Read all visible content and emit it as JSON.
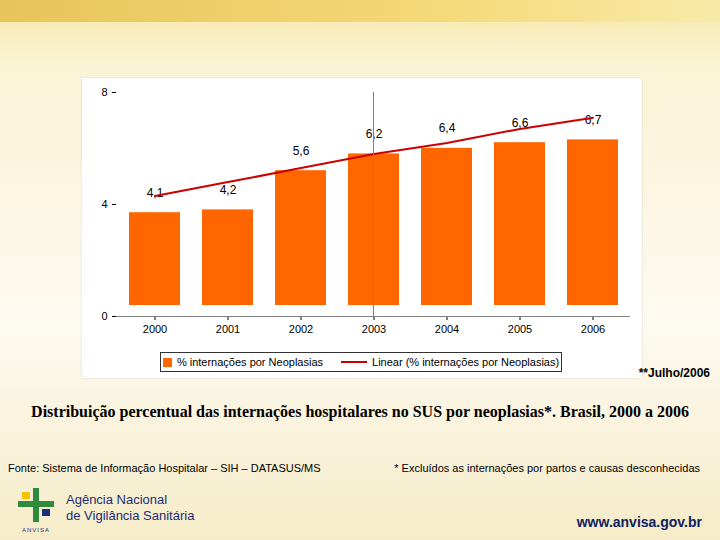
{
  "chart_data": {
    "type": "bar",
    "title": "Distribuição percentual das internações hospitalares no SUS por neoplasias*. Brasil, 2000 a 2006",
    "categories": [
      "2000",
      "2001",
      "2002",
      "2003",
      "2004",
      "2005",
      "2006"
    ],
    "series": [
      {
        "name": "% internações por Neoplasias",
        "type": "bar",
        "color": "#ff6600",
        "values": [
          4.1,
          4.2,
          5.6,
          6.2,
          6.4,
          6.6,
          6.7
        ],
        "value_labels": [
          "4,1",
          "4,2",
          "5,6",
          "6,2",
          "6,4",
          "6,6",
          "6,7"
        ]
      },
      {
        "name": "Linear (% internações por Neoplasias)",
        "type": "line",
        "color": "#cc0000",
        "values": [
          4.3,
          4.8,
          5.3,
          5.8,
          6.2,
          6.7,
          7.1
        ]
      }
    ],
    "ylim": [
      0,
      8
    ],
    "yticks": [
      0,
      4,
      8
    ],
    "grid": false,
    "data_labels": true,
    "legend": "bottom",
    "annotations": [
      "**Julho/2006"
    ],
    "source": "Fonte: Sistema de Informação Hospitalar – SIH – DATASUS/MS",
    "footnote": "* Excluídos as internações por partos e causas desconhecidas"
  },
  "page": {
    "logo": "ANVISA",
    "agency": [
      "Agência Nacional",
      "de Vigilância Sanitária"
    ],
    "url": "www.anvisa.gov.br"
  }
}
